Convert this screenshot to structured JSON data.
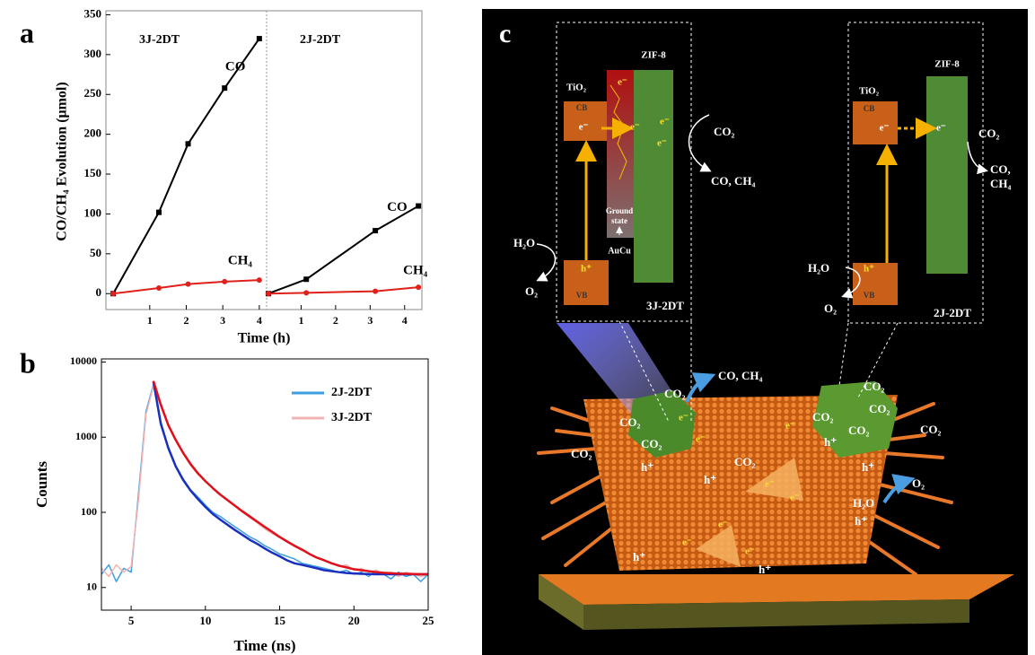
{
  "panel_labels": [
    "a",
    "b",
    "c"
  ],
  "chart_data": [
    {
      "type": "line",
      "ylabel": "CO/CH₄ Evolution (μmol)",
      "xlabel": "Time (h)",
      "ylim": [
        -20,
        355
      ],
      "yticks": [
        0,
        50,
        100,
        150,
        200,
        250,
        300,
        350
      ],
      "panels": [
        {
          "title": "3J-2DT",
          "xlim": [
            -0.2,
            4.2
          ],
          "xticks": [
            1,
            2,
            3,
            4
          ],
          "series": [
            {
              "name": "CO",
              "color": "#000000",
              "marker": "square",
              "x": [
                0,
                1.25,
                2.05,
                3.05,
                4.0
              ],
              "values": [
                0,
                102,
                188,
                258,
                320
              ]
            },
            {
              "name": "CH₄",
              "color": "#e0201b",
              "marker": "circle",
              "x": [
                0,
                1.25,
                2.05,
                3.05,
                4.0
              ],
              "values": [
                0,
                7,
                12,
                15,
                17
              ]
            }
          ]
        },
        {
          "title": "2J-2DT",
          "xlim": [
            0,
            4.5
          ],
          "xticks": [
            1,
            2,
            3,
            4
          ],
          "series": [
            {
              "name": "CO",
              "color": "#000000",
              "marker": "square",
              "x": [
                0.05,
                1.15,
                3.15,
                4.4
              ],
              "values": [
                0,
                18,
                79,
                110
              ]
            },
            {
              "name": "CH₄",
              "color": "#e0201b",
              "marker": "circle",
              "x": [
                0.05,
                1.15,
                3.15,
                4.4
              ],
              "values": [
                0,
                1,
                3,
                8
              ]
            }
          ]
        }
      ]
    },
    {
      "type": "line",
      "ylabel": "Counts",
      "xlabel": "Time (ns)",
      "log_y": true,
      "legend": "upper-right",
      "xlim": [
        3,
        25
      ],
      "ylim": [
        5,
        11000
      ],
      "xticks": [
        5,
        10,
        15,
        20,
        25
      ],
      "yticks": [
        10,
        100,
        1000,
        10000
      ],
      "series": [
        {
          "name": "2J-2DT",
          "color": "#3d9fe0",
          "width": 1.5,
          "x": [
            3,
            3.5,
            4,
            4.5,
            5,
            5.5,
            6,
            6.5,
            7,
            7.5,
            8,
            8.5,
            9,
            9.5,
            10,
            10.5,
            11,
            11.5,
            12,
            12.5,
            13,
            13.5,
            14,
            14.5,
            15,
            15.5,
            16,
            16.5,
            17,
            17.5,
            18,
            18.5,
            19,
            19.5,
            20,
            20.5,
            21,
            21.5,
            22,
            22.5,
            23,
            23.5,
            24,
            24.5,
            25
          ],
          "values": [
            15,
            20,
            12,
            18,
            16,
            180,
            2200,
            5000,
            1600,
            750,
            420,
            280,
            200,
            160,
            125,
            100,
            88,
            75,
            64,
            55,
            47,
            42,
            36,
            32,
            28,
            26,
            24,
            21,
            20,
            19,
            18,
            17,
            16,
            17,
            15,
            16,
            14,
            17,
            15,
            13,
            16,
            14,
            15,
            12,
            15
          ]
        },
        {
          "name": "3J-2DT",
          "color": "#f2b3b3",
          "width": 1.5,
          "x": [
            3,
            3.5,
            4,
            4.5,
            5,
            5.5,
            6,
            6.5,
            7,
            7.5,
            8,
            8.5,
            9,
            9.5,
            10,
            10.5,
            11,
            11.5,
            12,
            12.5,
            13,
            13.5,
            14,
            14.5,
            15,
            15.5,
            16,
            16.5,
            17,
            17.5,
            18,
            18.5,
            19,
            19.5,
            20,
            20.5,
            21,
            21.5,
            22,
            22.5,
            23,
            23.5,
            24,
            24.5,
            25
          ],
          "values": [
            18,
            14,
            20,
            16,
            19,
            150,
            2000,
            4800,
            2600,
            1400,
            900,
            600,
            420,
            320,
            260,
            210,
            175,
            145,
            120,
            100,
            85,
            72,
            60,
            52,
            46,
            40,
            35,
            31,
            28,
            25,
            23,
            21,
            19,
            20,
            17,
            18,
            16,
            17,
            15,
            16,
            14,
            16,
            15,
            14,
            15
          ]
        },
        {
          "color": "#1a2fbf",
          "width": 2.5,
          "x": [
            6.5,
            7,
            7.5,
            8,
            8.5,
            9,
            9.5,
            10,
            10.5,
            11,
            11.5,
            12,
            12.5,
            13,
            13.5,
            14,
            14.5,
            15,
            15.5,
            16,
            16.5,
            17,
            17.5,
            18,
            18.5,
            19,
            19.5,
            20,
            20.5,
            21,
            21.5,
            22,
            22.5,
            23,
            23.5,
            24,
            24.5,
            25
          ],
          "values": [
            5500,
            1500,
            720,
            410,
            270,
            195,
            150,
            118,
            95,
            80,
            68,
            58,
            50,
            43,
            38,
            33,
            29,
            26,
            23,
            21,
            20,
            19,
            18,
            17,
            16.5,
            16,
            15.6,
            15.4,
            15.2,
            15.1,
            15,
            15,
            15,
            15,
            15,
            15,
            15,
            15
          ]
        },
        {
          "color": "#e0101a",
          "width": 2.5,
          "x": [
            6.5,
            7,
            7.5,
            8,
            8.5,
            9,
            9.5,
            10,
            10.5,
            11,
            11.5,
            12,
            12.5,
            13,
            13.5,
            14,
            14.5,
            15,
            15.5,
            16,
            16.5,
            17,
            17.5,
            18,
            18.5,
            19,
            19.5,
            20,
            20.5,
            21,
            21.5,
            22,
            22.5,
            23,
            23.5,
            24,
            24.5,
            25
          ],
          "values": [
            5600,
            2700,
            1450,
            920,
            620,
            440,
            330,
            260,
            210,
            172,
            145,
            122,
            103,
            88,
            75,
            64,
            55,
            47,
            41,
            36,
            32,
            28,
            25,
            23,
            21,
            19.5,
            18.5,
            17.5,
            17,
            16.5,
            16,
            15.7,
            15.5,
            15.3,
            15.2,
            15.1,
            15,
            15
          ]
        }
      ]
    }
  ],
  "schematic": {
    "left": {
      "tio2": "TiO₂",
      "cb": "CB",
      "vb": "VB",
      "zif": "ZIF-8",
      "electron": "e⁻",
      "hole": "h⁺",
      "co2": "CO₂",
      "products": "CO, CH₄",
      "ground_state": [
        "Ground",
        "state"
      ],
      "aucu": "AuCu",
      "h2o": "H₂O",
      "o2": "O₂",
      "title": "3J-2DT"
    },
    "right": {
      "tio2": "TiO₂",
      "cb": "CB",
      "vb": "VB",
      "zif": "ZIF-8",
      "electron": "e⁻",
      "hole": "h⁺",
      "co2": "CO₂",
      "products": [
        "CO,",
        "CH₄"
      ],
      "h2o": "H₂O",
      "o2": "O₂",
      "title": "2J-2DT"
    },
    "scene": {
      "products": "CO, CH₄",
      "co2": "CO₂",
      "electron": "e⁻",
      "hole": "h⁺",
      "h2o": "H₂O",
      "o2": "O₂"
    }
  }
}
